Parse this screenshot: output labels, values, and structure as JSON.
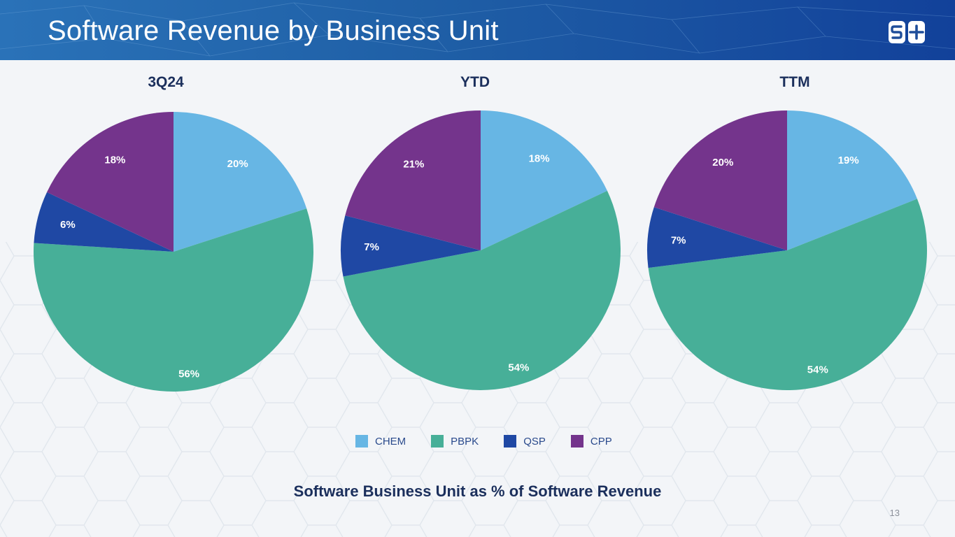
{
  "header": {
    "title": "Software Revenue by Business Unit"
  },
  "logo": {
    "icon": "simulations-plus-logo",
    "text": "S+"
  },
  "colors": {
    "CHEM": "#67b6e4",
    "PBPK": "#47af98",
    "QSP": "#1f48a4",
    "CPP": "#74348c",
    "header": "#1f5fa6",
    "title_text": "#1b2f5c"
  },
  "chart_data": [
    {
      "type": "pie",
      "title": "3Q24",
      "categories": [
        "CHEM",
        "PBPK",
        "QSP",
        "CPP"
      ],
      "values": [
        20,
        56,
        6,
        18
      ],
      "labels": [
        "20%",
        "56%",
        "6%",
        "18%"
      ]
    },
    {
      "type": "pie",
      "title": "YTD",
      "categories": [
        "CHEM",
        "PBPK",
        "QSP",
        "CPP"
      ],
      "values": [
        18,
        54,
        7,
        21
      ],
      "labels": [
        "18%",
        "54%",
        "7%",
        "21%"
      ]
    },
    {
      "type": "pie",
      "title": "TTM",
      "categories": [
        "CHEM",
        "PBPK",
        "QSP",
        "CPP"
      ],
      "values": [
        19,
        54,
        7,
        20
      ],
      "labels": [
        "19%",
        "54%",
        "7%",
        "20%"
      ]
    }
  ],
  "legend": {
    "placement": "bottom-center",
    "items": [
      "CHEM",
      "PBPK",
      "QSP",
      "CPP"
    ]
  },
  "footer": {
    "subtitle": "Software Business Unit as % of Software Revenue",
    "page_number": "13"
  }
}
